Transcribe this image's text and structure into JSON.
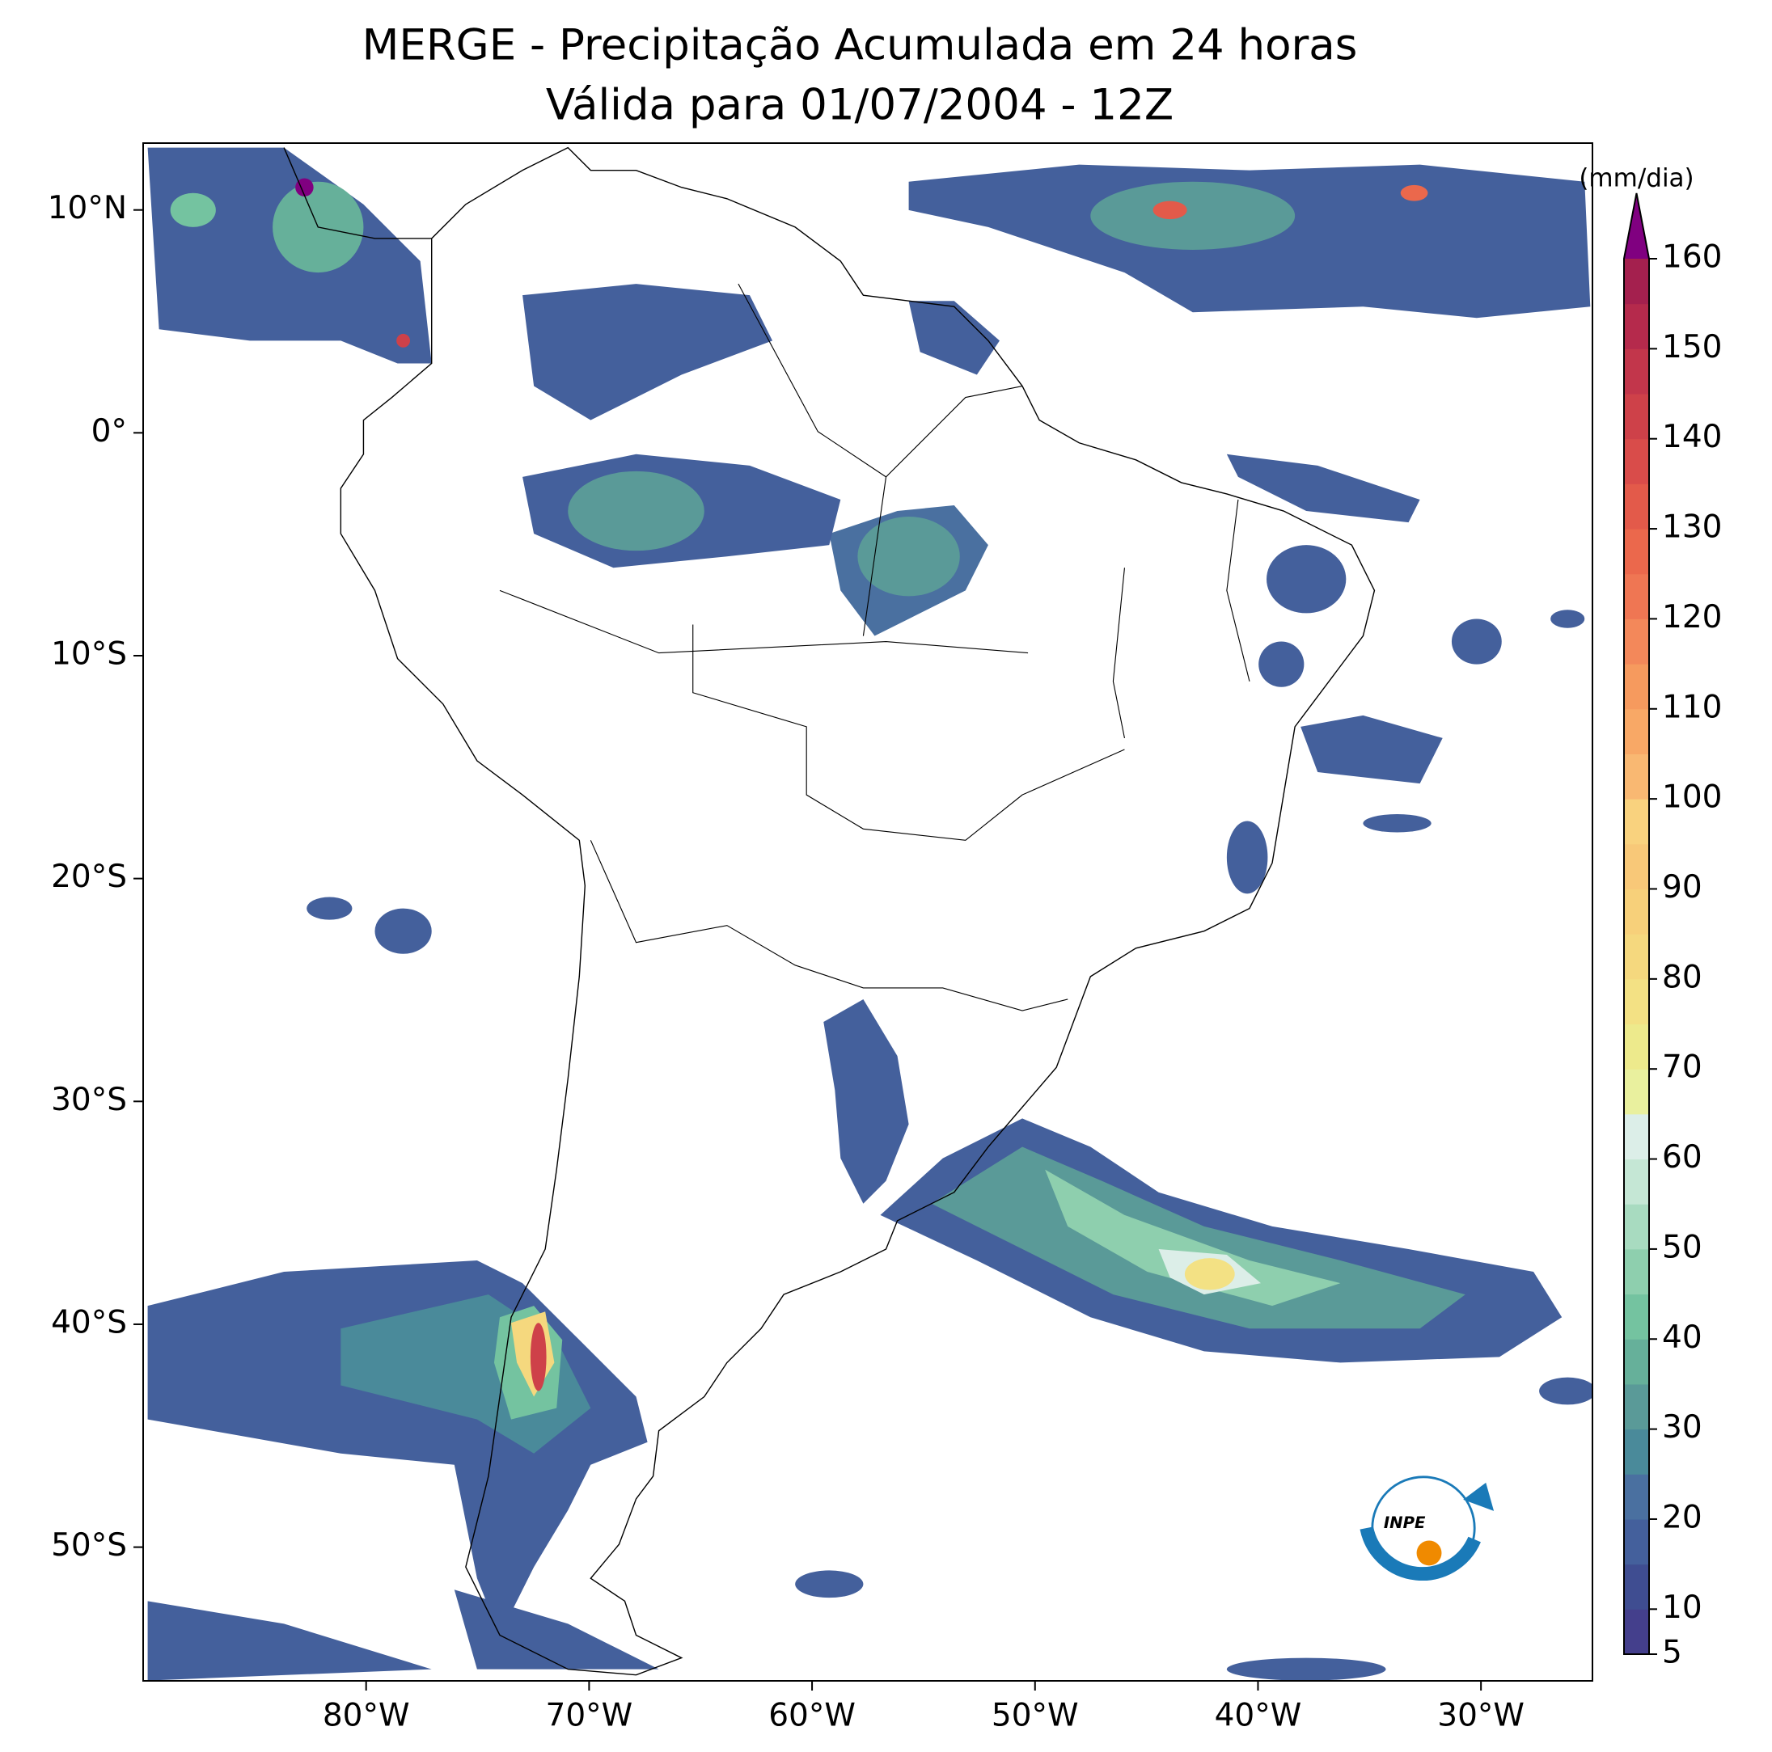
{
  "map": {
    "title": "MERGE - Precipitação Acumulada em 24 horas",
    "subtitle": "Válida para 01/07/2004 - 12Z",
    "xlim": [
      -90,
      -25
    ],
    "ylim": [
      -56,
      13
    ],
    "xticks": [
      {
        "value": -80,
        "label": "80°W"
      },
      {
        "value": -70,
        "label": "70°W"
      },
      {
        "value": -60,
        "label": "60°W"
      },
      {
        "value": -50,
        "label": "50°W"
      },
      {
        "value": -40,
        "label": "40°W"
      },
      {
        "value": -30,
        "label": "30°W"
      }
    ],
    "yticks": [
      {
        "value": 10,
        "label": "10°N"
      },
      {
        "value": 0,
        "label": "0°"
      },
      {
        "value": -10,
        "label": "10°S"
      },
      {
        "value": -20,
        "label": "20°S"
      },
      {
        "value": -30,
        "label": "30°S"
      },
      {
        "value": -40,
        "label": "40°S"
      },
      {
        "value": -50,
        "label": "50°S"
      }
    ],
    "colorbar": {
      "label": "(mm/dia)",
      "lim": [
        5,
        160
      ],
      "ticks": [
        5,
        10,
        20,
        30,
        40,
        50,
        60,
        70,
        80,
        90,
        100,
        110,
        120,
        130,
        140,
        150,
        160
      ],
      "colors": [
        "#443f8c",
        "#3f4d91",
        "#44609c",
        "#4a70a0",
        "#4a8a9a",
        "#5a9a98",
        "#66b09a",
        "#74c3a0",
        "#8ecfae",
        "#a8dbc0",
        "#c5e7d5",
        "#dceee8",
        "#e9f09e",
        "#edea8c",
        "#f3e184",
        "#f5d87e",
        "#f7d07a",
        "#f8c878",
        "#f9d27e",
        "#f9b872",
        "#f8a866",
        "#f69a5e",
        "#f3885a",
        "#ef7653",
        "#eb684c",
        "#e35a4a",
        "#d94c4a",
        "#ce4149",
        "#c2364b",
        "#b52a4c",
        "#a4204e"
      ],
      "extend_color": "#800080"
    },
    "logo": "INPE"
  }
}
